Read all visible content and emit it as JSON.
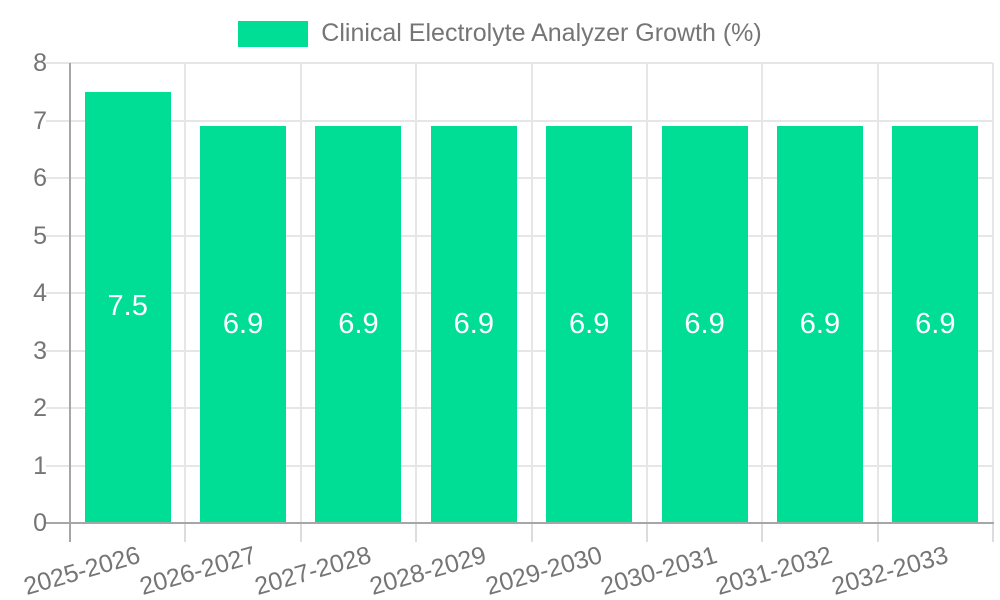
{
  "chart_data": {
    "type": "bar",
    "title": "",
    "legend": "Clinical Electrolyte Analyzer Growth (%)",
    "legend_position": "top-center",
    "categories": [
      "2025-2026",
      "2026-2027",
      "2027-2028",
      "2028-2029",
      "2029-2030",
      "2030-2031",
      "2031-2032",
      "2032-2033"
    ],
    "values": [
      7.5,
      6.9,
      6.9,
      6.9,
      6.9,
      6.9,
      6.9,
      6.9
    ],
    "bar_labels": [
      "7.5",
      "6.9",
      "6.9",
      "6.9",
      "6.9",
      "6.9",
      "6.9",
      "6.9"
    ],
    "yticks": [
      0,
      1,
      2,
      3,
      4,
      5,
      6,
      7,
      8
    ],
    "ylim": [
      0,
      8
    ],
    "xlabel": "",
    "ylabel": "",
    "grid": true
  },
  "colors": {
    "bar": "#00DE95",
    "axis_line": "#a6a6a6",
    "gridline": "#e6e6e6",
    "tick": "#dcdcdc",
    "axis_text": "#757575",
    "legend_text": "#757575",
    "bar_label_text": "#ffffff",
    "background": "#ffffff"
  }
}
